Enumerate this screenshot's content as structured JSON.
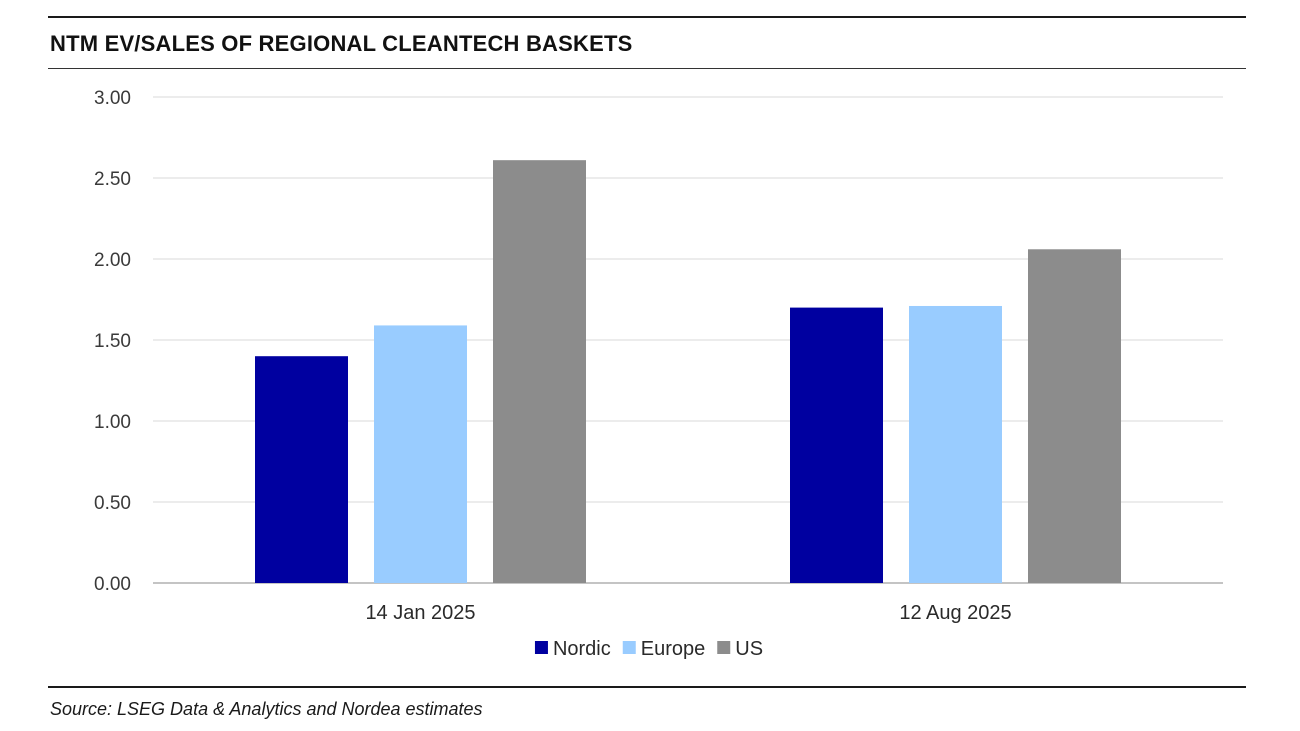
{
  "header": {
    "title": "NTM EV/SALES OF REGIONAL CLEANTECH BASKETS"
  },
  "footer": {
    "source": "Source: LSEG Data & Analytics and Nordea estimates"
  },
  "chart_data": {
    "type": "bar",
    "title": "NTM EV/SALES OF REGIONAL CLEANTECH BASKETS",
    "categories": [
      "14 Jan 2025",
      "12 Aug 2025"
    ],
    "series": [
      {
        "name": "Nordic",
        "color": "#0000a0",
        "values": [
          1.4,
          1.7
        ]
      },
      {
        "name": "Europe",
        "color": "#99ccff",
        "values": [
          1.59,
          1.71
        ]
      },
      {
        "name": "US",
        "color": "#8c8c8c",
        "values": [
          2.61,
          2.06
        ]
      }
    ],
    "y_ticks": [
      "0.00",
      "0.50",
      "1.00",
      "1.50",
      "2.00",
      "2.50",
      "3.00"
    ],
    "ylim": [
      0,
      3.0
    ],
    "grid": true,
    "legend_position": "bottom"
  }
}
